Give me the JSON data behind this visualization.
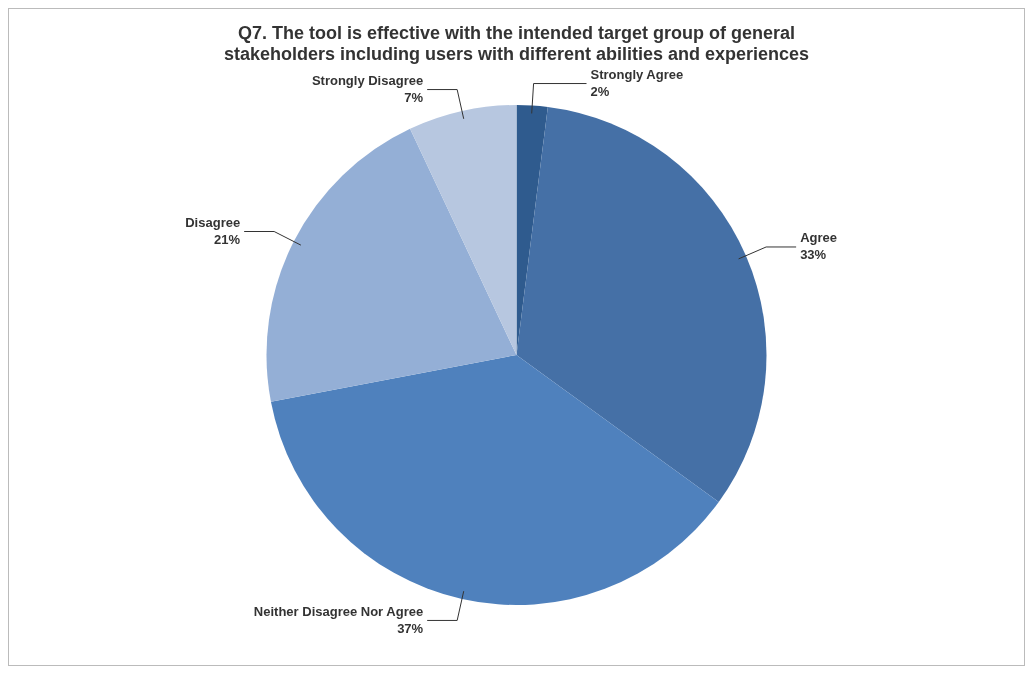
{
  "chart_data": {
    "type": "pie",
    "title": "Q7. The tool is effective with the intended target group of general stakeholders including users with different abilities and experiences",
    "categories": [
      "Strongly Agree",
      "Agree",
      "Neither Disagree Nor Agree",
      "Disagree",
      "Strongly Disagree"
    ],
    "values": [
      2,
      33,
      37,
      21,
      7
    ],
    "colors": [
      "#2f5b8e",
      "#4570a6",
      "#4f81bd",
      "#94afd6",
      "#b7c7e0"
    ],
    "value_labels": [
      "2%",
      "33%",
      "37%",
      "21%",
      "7%"
    ],
    "legend": false
  }
}
